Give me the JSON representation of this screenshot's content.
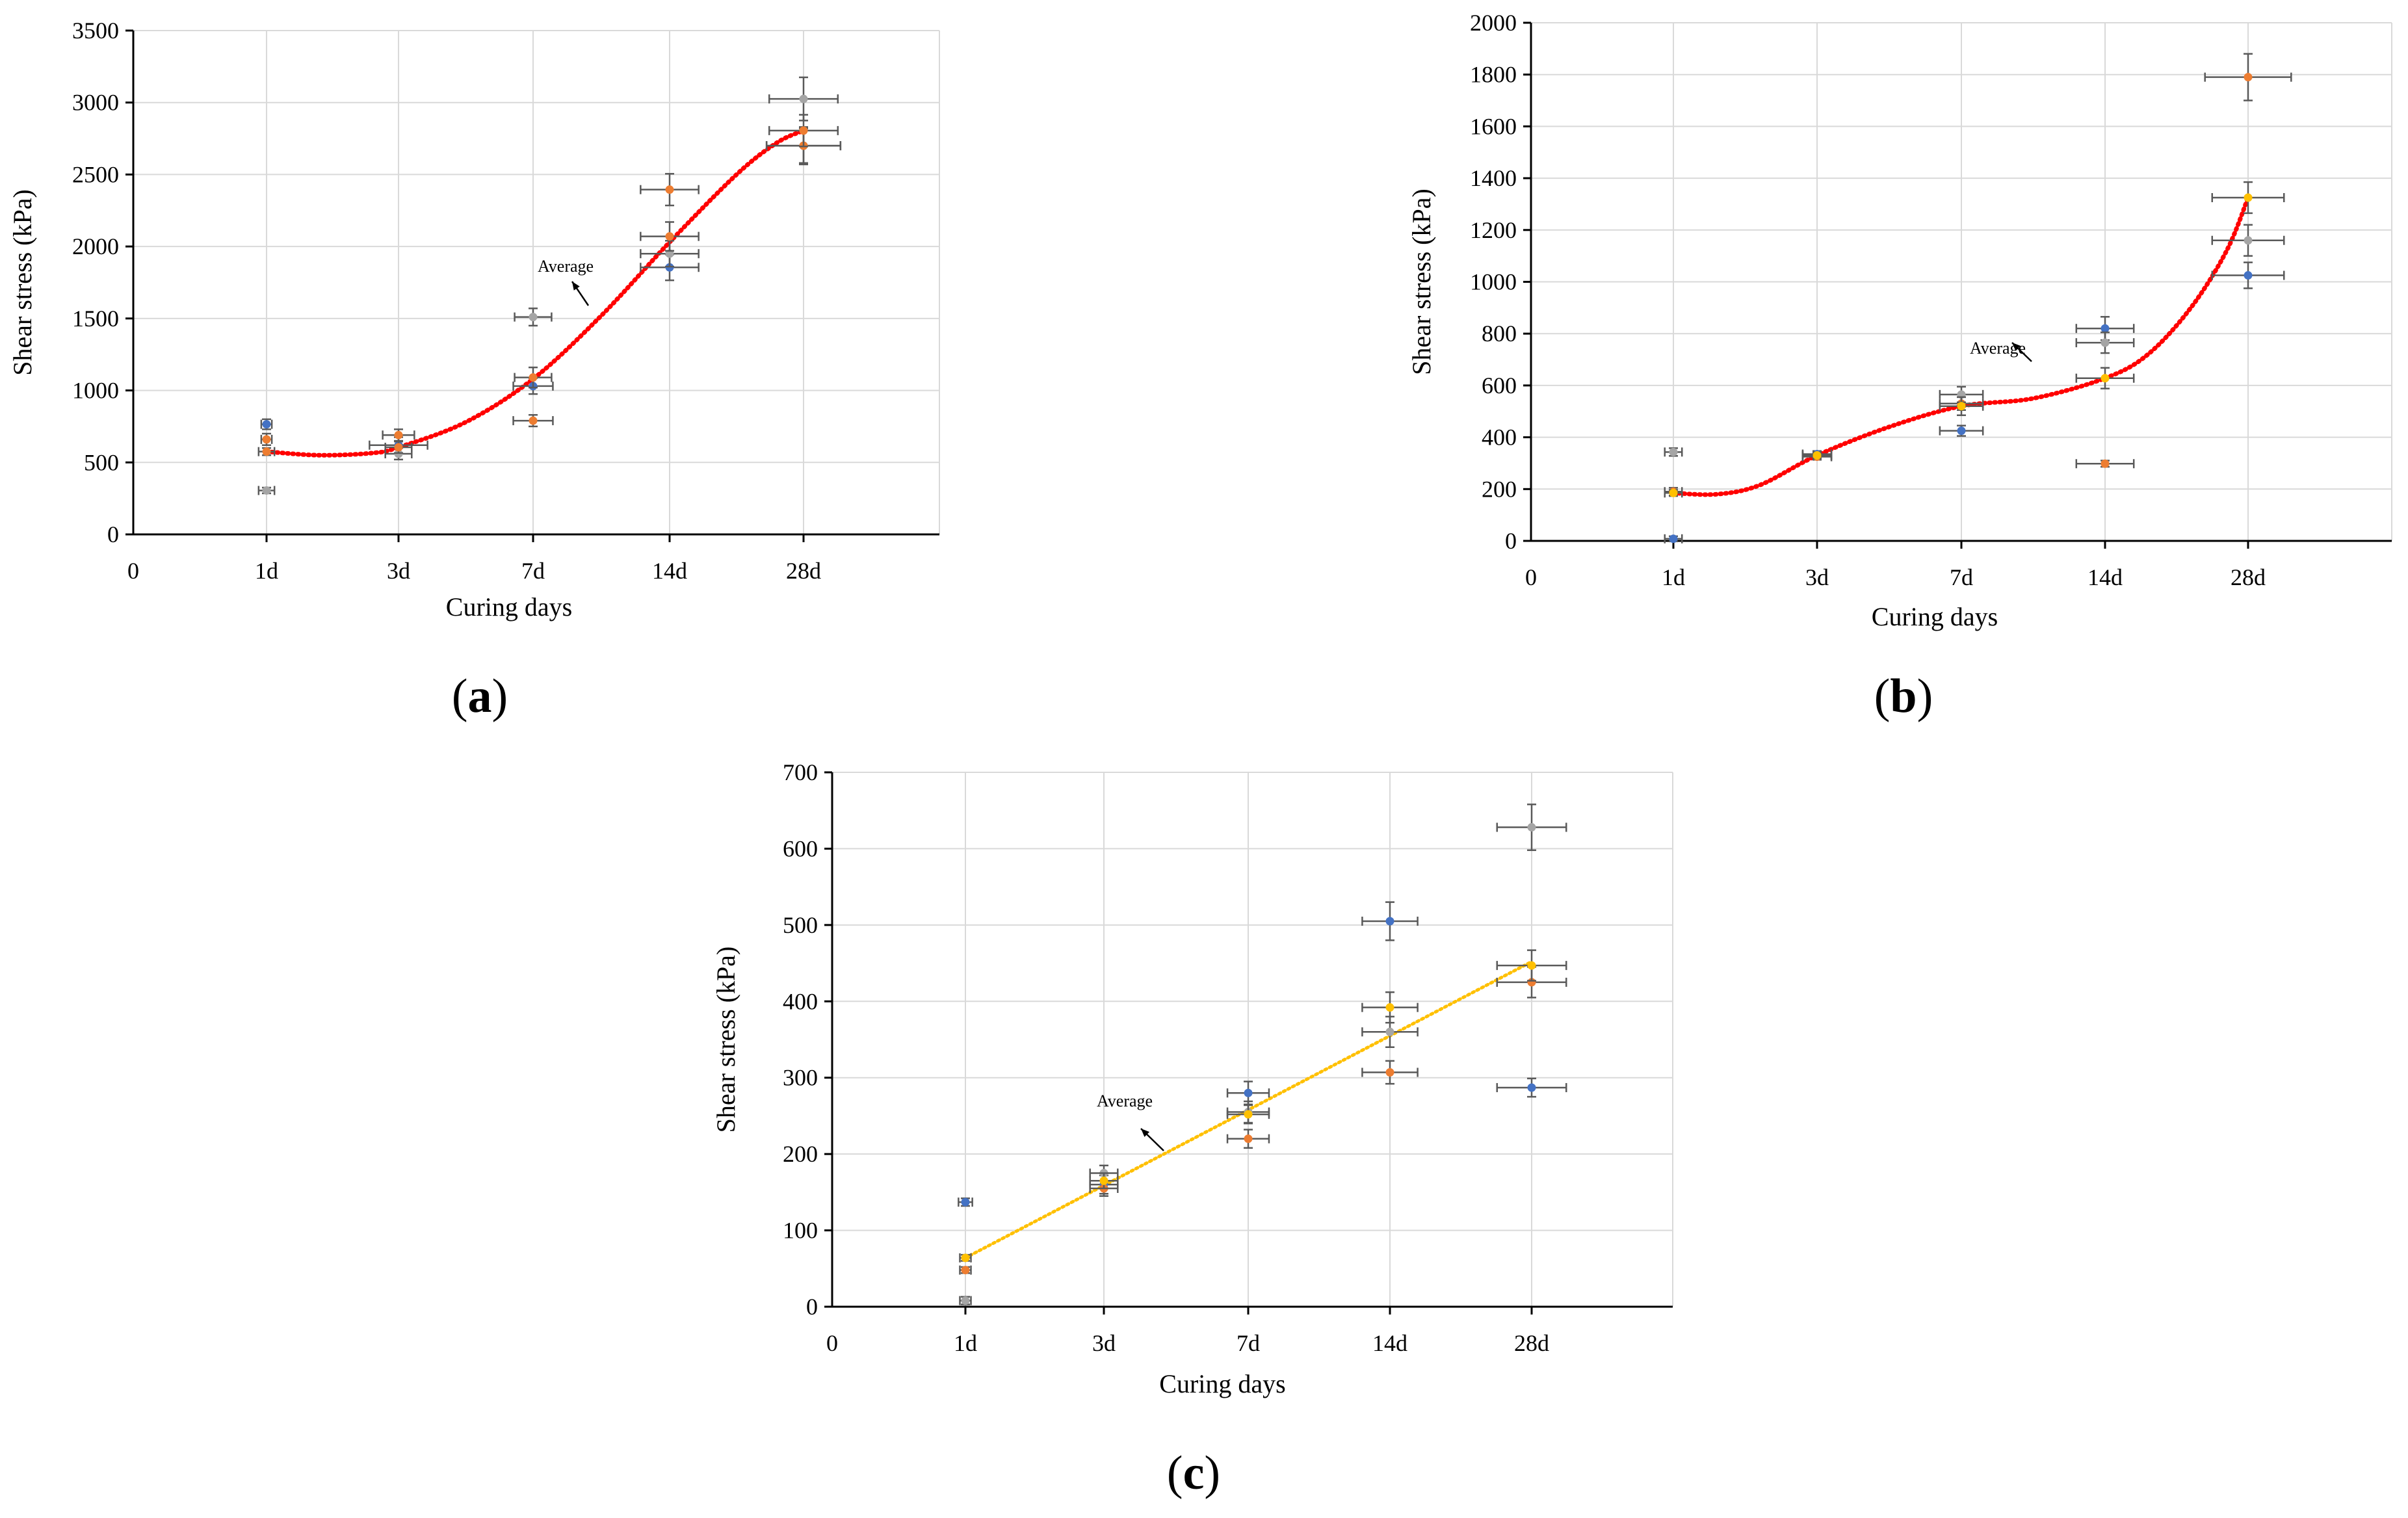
{
  "colors": {
    "blue": "#4472C4",
    "orange": "#ED7D31",
    "gray": "#A5A5A5",
    "yellow": "#FFC000",
    "red_trend": "#FF0000",
    "grid": "#D9D9D9",
    "axis": "#000000",
    "errorbar": "#595959"
  },
  "chart_data": [
    {
      "id": "a",
      "type": "scatter",
      "panel_label": "(a)",
      "panel_letter": "a",
      "xlabel": "Curing days",
      "ylabel": "Shear  stress (kPa)",
      "x_origin_label": "0",
      "categories": [
        "1d",
        "3d",
        "7d",
        "14d",
        "28d"
      ],
      "ylim": [
        0,
        3500
      ],
      "yticks": [
        0,
        500,
        1000,
        1500,
        2000,
        2500,
        3000,
        3500
      ],
      "grid": true,
      "annotation": "Average",
      "series": [
        {
          "name": "blue",
          "color_key": "blue",
          "values": [
            765,
            620,
            1030,
            1855,
            2700
          ],
          "xerr": [
            0.04,
            0.22,
            0.15,
            0.22,
            0.28
          ],
          "yerr": [
            35,
            55,
            55,
            90,
            130
          ]
        },
        {
          "name": "orange",
          "color_key": "orange",
          "values": [
            660,
            690,
            790,
            2395,
            2700
          ],
          "xerr": [
            0.04,
            0.12,
            0.15,
            0.22,
            0.28
          ],
          "yerr": [
            40,
            40,
            40,
            110,
            120
          ]
        },
        {
          "name": "gray",
          "color_key": "gray",
          "values": [
            305,
            560,
            1510,
            1950,
            3025
          ],
          "xerr": [
            0.06,
            0.1,
            0.14,
            0.22,
            0.26
          ],
          "yerr": [
            20,
            40,
            60,
            90,
            150
          ]
        },
        {
          "name": "average",
          "color_key": "orange",
          "values": [
            575,
            605,
            1090,
            2070,
            2805
          ],
          "xerr": [
            0.06,
            0.1,
            0.14,
            0.22,
            0.26
          ],
          "yerr": [
            25,
            40,
            70,
            100,
            110
          ]
        }
      ],
      "trendline": {
        "type": "polynomial",
        "style": "dotted",
        "color_key": "red_trend",
        "points": [
          [
            0,
            575
          ],
          [
            0.4,
            550
          ],
          [
            0.8,
            565
          ],
          [
            1,
            605
          ],
          [
            1.5,
            780
          ],
          [
            2,
            1080
          ],
          [
            2.5,
            1520
          ],
          [
            3,
            2030
          ],
          [
            3.5,
            2500
          ],
          [
            3.8,
            2720
          ],
          [
            4,
            2805
          ]
        ]
      }
    },
    {
      "id": "b",
      "type": "scatter",
      "panel_label": "(b)",
      "panel_letter": "b",
      "xlabel": "Curing days",
      "ylabel": "Shear stress (kPa)",
      "x_origin_label": "0",
      "categories": [
        "1d",
        "3d",
        "7d",
        "14d",
        "28d"
      ],
      "ylim": [
        0,
        2000
      ],
      "yticks": [
        0,
        200,
        400,
        600,
        800,
        1000,
        1200,
        1400,
        1600,
        1800,
        2000
      ],
      "grid": true,
      "annotation": "Average",
      "series": [
        {
          "name": "blue",
          "color_key": "blue",
          "values": [
            8,
            335,
            425,
            820,
            1025
          ],
          "xerr": [
            0.06,
            0.1,
            0.15,
            0.2,
            0.25
          ],
          "yerr": [
            10,
            12,
            20,
            45,
            50
          ]
        },
        {
          "name": "orange",
          "color_key": "orange",
          "values": [
            190,
            325,
            530,
            298,
            1790
          ],
          "xerr": [
            0.06,
            0.1,
            0.15,
            0.2,
            0.3
          ],
          "yerr": [
            15,
            12,
            25,
            12,
            90
          ]
        },
        {
          "name": "gray",
          "color_key": "gray",
          "values": [
            343,
            330,
            565,
            765,
            1160
          ],
          "xerr": [
            0.06,
            0.1,
            0.15,
            0.2,
            0.25
          ],
          "yerr": [
            15,
            12,
            30,
            40,
            60
          ]
        },
        {
          "name": "average",
          "color_key": "yellow",
          "values": [
            185,
            330,
            520,
            628,
            1325
          ],
          "xerr": [
            0.06,
            0.1,
            0.15,
            0.2,
            0.25
          ],
          "yerr": [
            12,
            12,
            35,
            40,
            60
          ]
        }
      ],
      "trendline": {
        "type": "polynomial",
        "style": "dotted",
        "color_key": "red_trend",
        "points": [
          [
            0,
            185
          ],
          [
            0.3,
            180
          ],
          [
            0.6,
            215
          ],
          [
            1,
            330
          ],
          [
            1.5,
            440
          ],
          [
            2,
            520
          ],
          [
            2.5,
            550
          ],
          [
            3,
            628
          ],
          [
            3.3,
            720
          ],
          [
            3.6,
            900
          ],
          [
            3.85,
            1120
          ],
          [
            4,
            1325
          ]
        ]
      }
    },
    {
      "id": "c",
      "type": "scatter",
      "panel_label": "(c)",
      "panel_letter": "c",
      "xlabel": "Curing days",
      "ylabel": "Shear stress (kPa)",
      "x_origin_label": "0",
      "categories": [
        "1d",
        "3d",
        "7d",
        "14d",
        "28d"
      ],
      "ylim": [
        0,
        700
      ],
      "yticks": [
        0,
        100,
        200,
        300,
        400,
        500,
        600,
        700
      ],
      "grid": true,
      "annotation": "Average",
      "series": [
        {
          "name": "blue",
          "color_key": "blue",
          "values": [
            137,
            160,
            280,
            505,
            287
          ],
          "xerr": [
            0.05,
            0.1,
            0.15,
            0.2,
            0.25
          ],
          "yerr": [
            5,
            12,
            15,
            25,
            12
          ]
        },
        {
          "name": "orange",
          "color_key": "orange",
          "values": [
            48,
            155,
            220,
            307,
            425
          ],
          "xerr": [
            0.04,
            0.1,
            0.15,
            0.2,
            0.25
          ],
          "yerr": [
            4,
            10,
            12,
            15,
            20
          ]
        },
        {
          "name": "gray",
          "color_key": "gray",
          "values": [
            8,
            175,
            255,
            360,
            628
          ],
          "xerr": [
            0.04,
            0.1,
            0.15,
            0.2,
            0.25
          ],
          "yerr": [
            5,
            10,
            14,
            20,
            30
          ]
        },
        {
          "name": "average",
          "color_key": "yellow",
          "values": [
            64,
            165,
            252,
            392,
            447
          ],
          "xerr": [
            0.04,
            0.1,
            0.15,
            0.2,
            0.25
          ],
          "yerr": [
            4,
            10,
            12,
            20,
            20
          ]
        }
      ],
      "trendline": {
        "type": "linear",
        "style": "dotted",
        "color_key": "yellow",
        "points": [
          [
            0,
            64
          ],
          [
            4,
            452
          ]
        ]
      }
    }
  ]
}
